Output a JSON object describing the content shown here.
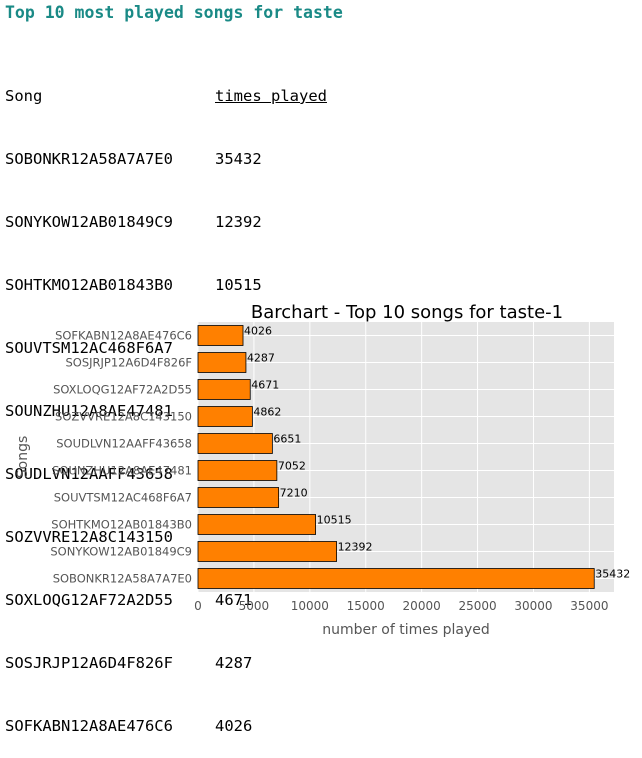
{
  "heading": "Top 10 most played songs for taste",
  "table": {
    "col_song": "Song",
    "col_times": "times played",
    "rows": [
      {
        "song": "SOBONKR12A58A7A7E0",
        "times": "35432"
      },
      {
        "song": "SONYKOW12AB01849C9",
        "times": "12392"
      },
      {
        "song": "SOHTKMO12AB01843B0",
        "times": "10515"
      },
      {
        "song": "SOUVTSM12AC468F6A7",
        "times": "7210"
      },
      {
        "song": "SOUNZHU12A8AE47481",
        "times": "7052"
      },
      {
        "song": "SOUDLVN12AAFF43658",
        "times": "6651"
      },
      {
        "song": "SOZVVRE12A8C143150",
        "times": "4862"
      },
      {
        "song": "SOXLOQG12AF72A2D55",
        "times": "4671"
      },
      {
        "song": "SOSJRJP12A6D4F826F",
        "times": "4287"
      },
      {
        "song": "SOFKABN12A8AE476C6",
        "times": "4026"
      }
    ]
  },
  "chart_data": {
    "type": "bar",
    "orientation": "horizontal",
    "title": "Barchart - Top 10 songs for taste-1",
    "xlabel": "number of times played",
    "ylabel": "Songs",
    "categories": [
      "SOBONKR12A58A7A7E0",
      "SONYKOW12AB01849C9",
      "SOHTKMO12AB01843B0",
      "SOUVTSM12AC468F6A7",
      "SOUNZHU12A8AE47481",
      "SOUDLVN12AAFF43658",
      "SOZVVRE12A8C143150",
      "SOXLOQG12AF72A2D55",
      "SOSJRJP12A6D4F826F",
      "SOFKABN12A8AE476C6"
    ],
    "values": [
      35432,
      12392,
      10515,
      7210,
      7052,
      6651,
      4862,
      4671,
      4287,
      4026
    ],
    "xlim": [
      0,
      37200
    ],
    "xticks": [
      0,
      5000,
      10000,
      15000,
      20000,
      25000,
      30000,
      35000
    ],
    "grid": true,
    "colors": {
      "bar": "#ff8000",
      "bar_edge": "#000000",
      "plot_bg": "#e5e5e5",
      "grid": "#ffffff"
    }
  }
}
